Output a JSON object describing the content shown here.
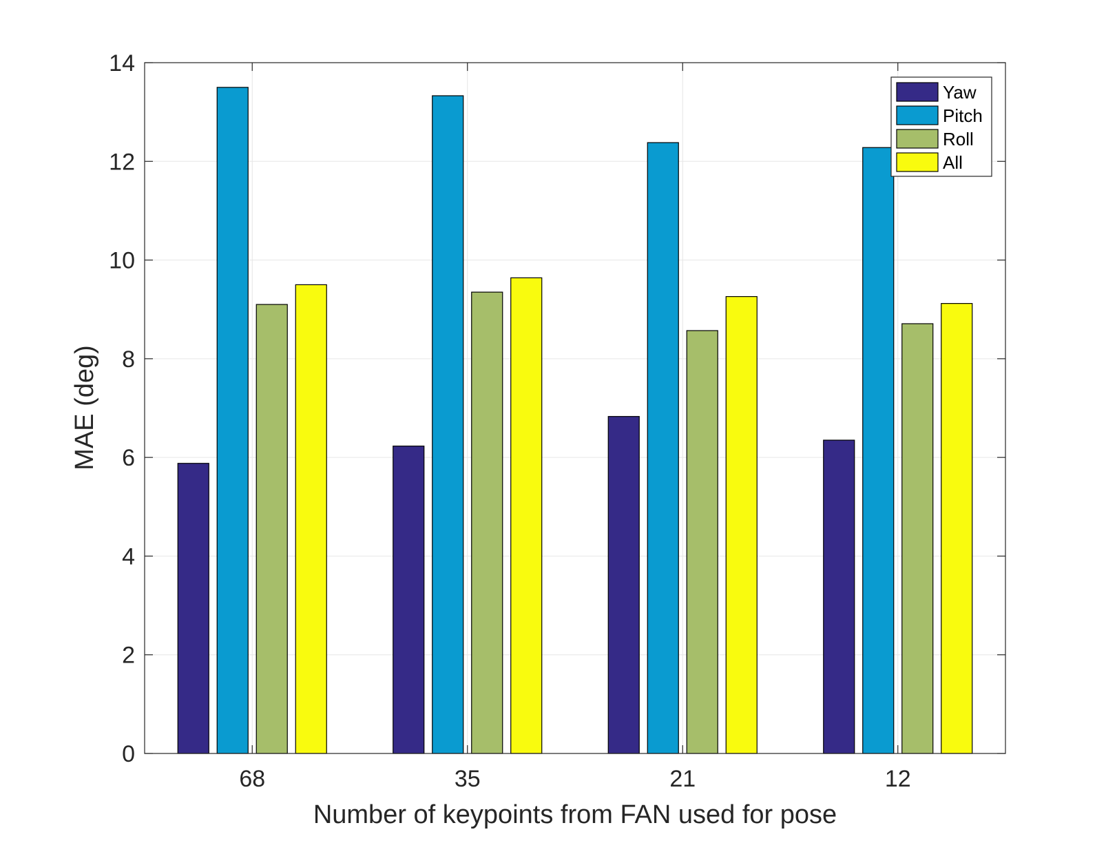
{
  "chart_data": {
    "type": "bar",
    "title": "",
    "xlabel": "Number of keypoints from FAN used for pose",
    "ylabel": "MAE (deg)",
    "categories": [
      "68",
      "35",
      "21",
      "12"
    ],
    "ylim": [
      0,
      14
    ],
    "yticks": [
      0,
      2,
      4,
      6,
      8,
      10,
      12,
      14
    ],
    "ytick_labels": [
      "0",
      "2",
      "4",
      "6",
      "8",
      "10",
      "12",
      "14"
    ],
    "grid": true,
    "legend_position": "top-right",
    "series": [
      {
        "name": "Yaw",
        "color": "#352a87",
        "values": [
          5.88,
          6.23,
          6.83,
          6.35
        ]
      },
      {
        "name": "Pitch",
        "color": "#0a9bd0",
        "values": [
          13.5,
          13.33,
          12.38,
          12.28
        ]
      },
      {
        "name": "Roll",
        "color": "#a6be6a",
        "values": [
          9.1,
          9.35,
          8.57,
          8.71
        ]
      },
      {
        "name": "All",
        "color": "#f9fb0e",
        "values": [
          9.5,
          9.64,
          9.26,
          9.12
        ]
      }
    ]
  }
}
